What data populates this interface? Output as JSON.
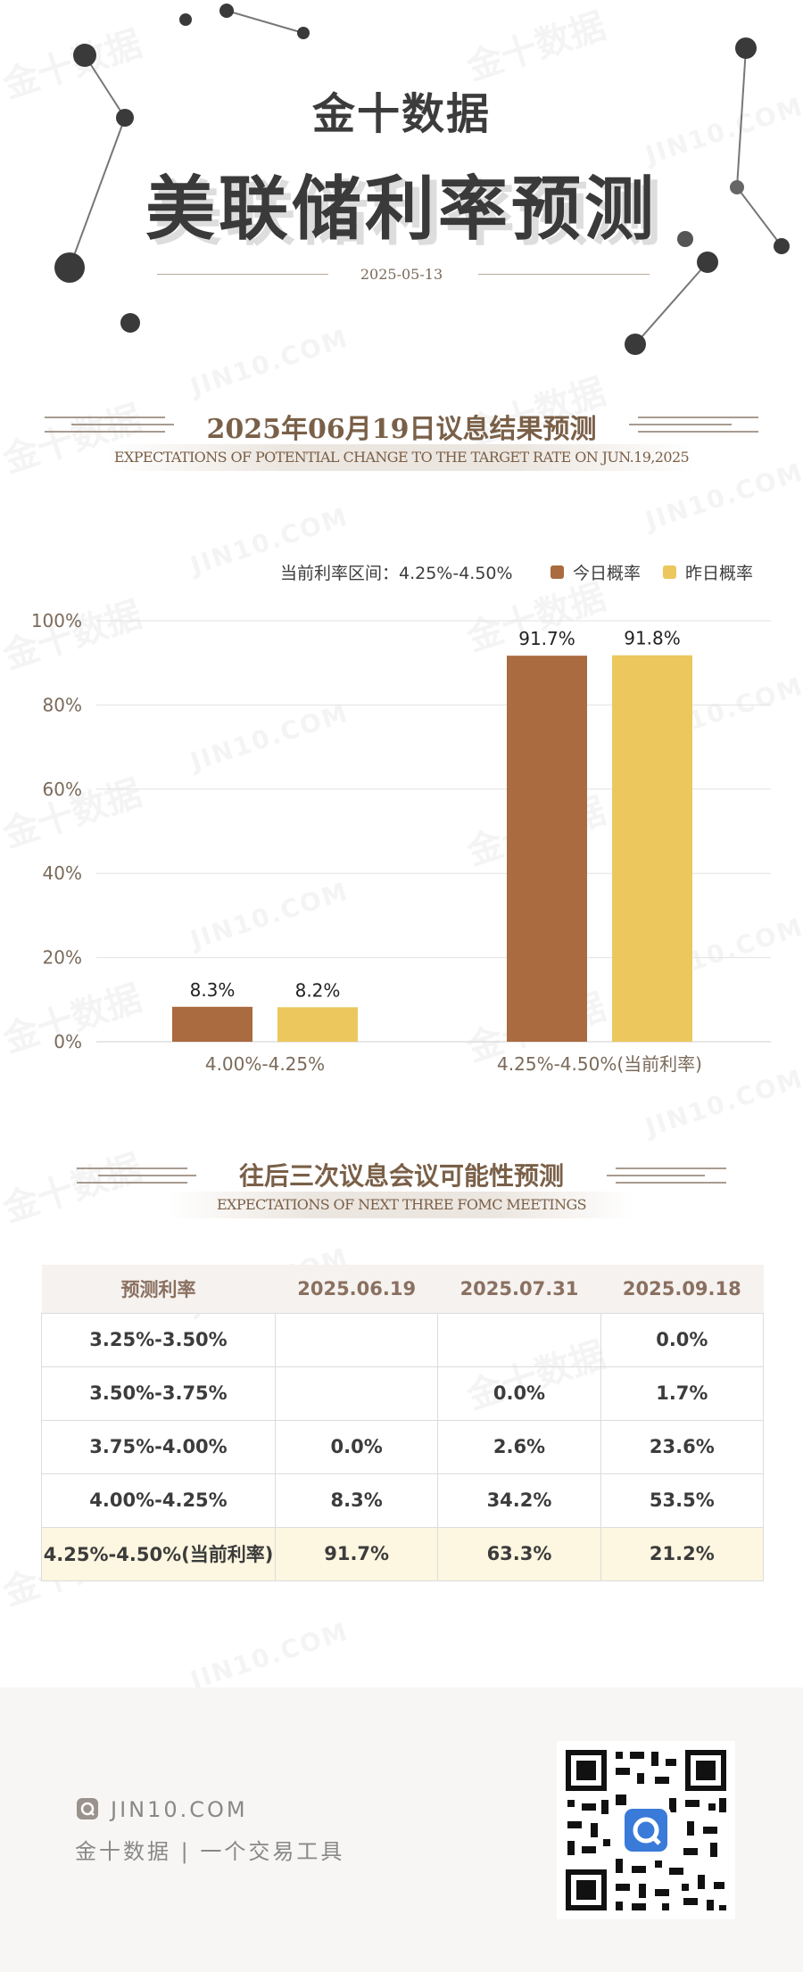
{
  "header": {
    "brand": "金十数据",
    "title": "美联储利率预测",
    "date": "2025-05-13"
  },
  "section1": {
    "title": "2025年06月19日议息结果预测",
    "subtitle": "EXPECTATIONS OF POTENTIAL CHANGE TO THE TARGET RATE ON JUN.19,2025"
  },
  "legend": {
    "current_rate": "当前利率区间：4.25%-4.50%",
    "today": "今日概率",
    "yesterday": "昨日概率"
  },
  "colors": {
    "today": "#a96b3f",
    "yesterday": "#ebc75d",
    "accent": "#7a6048",
    "highlight_row": "#fdf6e0"
  },
  "chart_data": {
    "type": "bar",
    "categories": [
      "4.00%-4.25%",
      "4.25%-4.50%(当前利率)"
    ],
    "series": [
      {
        "name": "今日概率",
        "values": [
          8.3,
          91.7
        ]
      },
      {
        "name": "昨日概率",
        "values": [
          8.2,
          91.8
        ]
      }
    ],
    "data_labels": [
      [
        "8.3%",
        "91.7%"
      ],
      [
        "8.2%",
        "91.8%"
      ]
    ],
    "y_ticks": [
      "0%",
      "20%",
      "40%",
      "60%",
      "80%",
      "100%"
    ],
    "ylim": [
      0,
      100
    ],
    "grid": true,
    "legend_position": "top-right"
  },
  "section2": {
    "title": "往后三次议息会议可能性预测",
    "subtitle": "EXPECTATIONS OF NEXT THREE FOMC MEETINGS"
  },
  "table": {
    "headers": [
      "预测利率",
      "2025.06.19",
      "2025.07.31",
      "2025.09.18"
    ],
    "rows": [
      [
        "3.25%-3.50%",
        "",
        "",
        "0.0%"
      ],
      [
        "3.50%-3.75%",
        "",
        "0.0%",
        "1.7%"
      ],
      [
        "3.75%-4.00%",
        "0.0%",
        "2.6%",
        "23.6%"
      ],
      [
        "4.00%-4.25%",
        "8.3%",
        "34.2%",
        "53.5%"
      ],
      [
        "4.25%-4.50%(当前利率)",
        "91.7%",
        "63.3%",
        "21.2%"
      ]
    ]
  },
  "footer": {
    "domain": "JIN10.COM",
    "slogan": "金十数据 | 一个交易工具"
  },
  "watermark": {
    "cn": "金十数据",
    "en": "JIN10.COM"
  }
}
